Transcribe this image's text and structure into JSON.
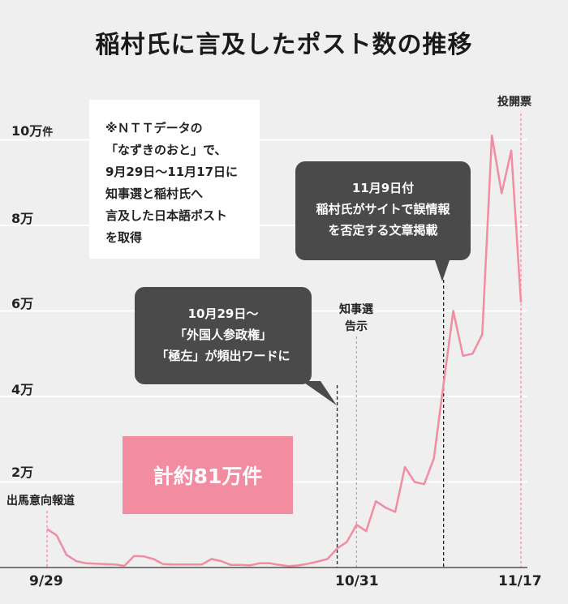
{
  "title": "稲村氏に言及したポスト数の推移",
  "note": {
    "lines": [
      "※ＮＴＴデータの",
      "「なずきのおと」で、",
      "9月29日〜11月17日に",
      "知事選と稲村氏へ",
      "言及した日本語ポスト",
      "を取得"
    ]
  },
  "callouts": {
    "nov9": [
      "11月9日付",
      "稲村氏がサイトで誤情報",
      "を否定する文章掲載"
    ],
    "oct29": [
      "10月29日〜",
      "「外国人参政権」",
      "「極左」が頻出ワードに"
    ]
  },
  "total": "計約81万件",
  "events": {
    "announce": "出馬意向報道",
    "election_notice": [
      "知事選",
      "告示"
    ],
    "vote": "投開票"
  },
  "y_ticks": [
    {
      "num": "2万",
      "unit": ""
    },
    {
      "num": "4万",
      "unit": ""
    },
    {
      "num": "6万",
      "unit": ""
    },
    {
      "num": "8万",
      "unit": ""
    },
    {
      "num": "10万",
      "unit": "件"
    }
  ],
  "x_ticks": [
    "9/29",
    "10/31",
    "11/17"
  ],
  "colors": {
    "line": "#f28ca0",
    "background": "#efefef",
    "grid": "#ffffff",
    "callout": "#4a4a4a"
  },
  "chart_data": {
    "type": "line",
    "title": "稲村氏に言及したポスト数の推移",
    "xlabel": "",
    "ylabel": "",
    "ylim": [
      0,
      100000
    ],
    "x": [
      "9/29",
      "9/30",
      "10/1",
      "10/2",
      "10/3",
      "10/4",
      "10/5",
      "10/6",
      "10/7",
      "10/8",
      "10/9",
      "10/10",
      "10/11",
      "10/12",
      "10/13",
      "10/14",
      "10/15",
      "10/16",
      "10/17",
      "10/18",
      "10/19",
      "10/20",
      "10/21",
      "10/22",
      "10/23",
      "10/24",
      "10/25",
      "10/26",
      "10/27",
      "10/28",
      "10/29",
      "10/30",
      "10/31",
      "11/1",
      "11/2",
      "11/3",
      "11/4",
      "11/5",
      "11/6",
      "11/7",
      "11/8",
      "11/9",
      "11/10",
      "11/11",
      "11/12",
      "11/13",
      "11/14",
      "11/15",
      "11/16",
      "11/17"
    ],
    "series": [
      {
        "values": [
          9000,
          7500,
          3000,
          1500,
          1000,
          900,
          800,
          700,
          400,
          2700,
          2600,
          2000,
          800,
          700,
          700,
          700,
          700,
          2000,
          1500,
          600,
          600,
          500,
          1000,
          1000,
          600,
          300,
          500,
          900,
          1400,
          2000,
          4500,
          6000,
          10000,
          8500,
          15500,
          14000,
          13000,
          23500,
          20000,
          19500,
          25500,
          43000,
          60000,
          49500,
          50000,
          54500,
          101000,
          87500,
          97500,
          62000
        ]
      }
    ]
  }
}
